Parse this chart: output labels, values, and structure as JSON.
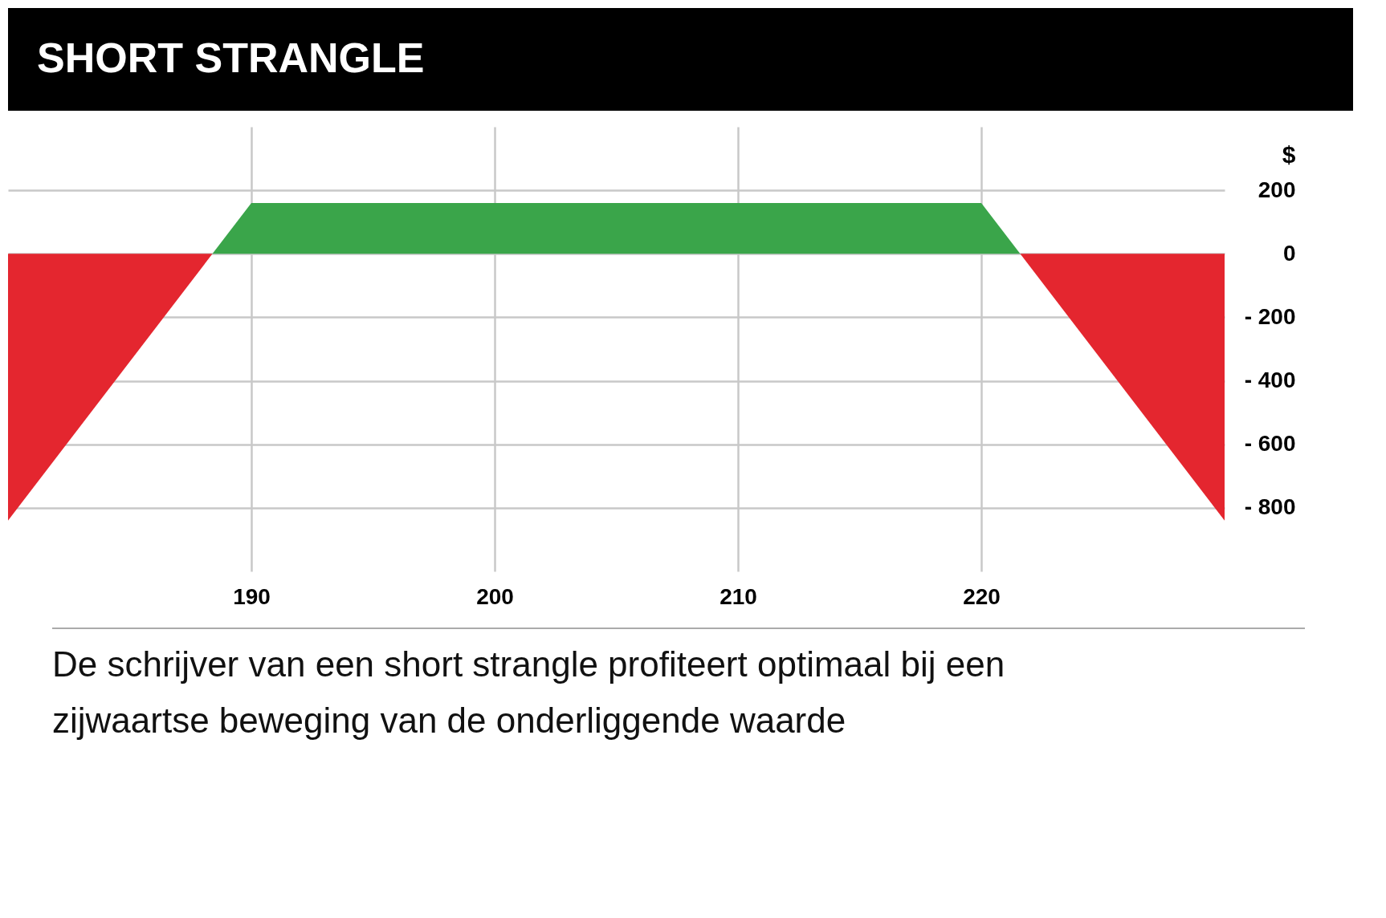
{
  "chart_data": {
    "type": "area",
    "title": "SHORT STRANGLE",
    "ylabel": "$",
    "series": [
      {
        "color": "#e4262f",
        "x": [
          180,
          188.4
        ],
        "values": [
          -840,
          0
        ]
      },
      {
        "color": "#3aa54a",
        "x": [
          188.4,
          190,
          220,
          221.6
        ],
        "values": [
          0,
          160,
          160,
          0
        ]
      },
      {
        "color": "#e4262f",
        "x": [
          221.6,
          230
        ],
        "values": [
          0,
          -840
        ]
      }
    ],
    "xlim": [
      180,
      230
    ],
    "xticks": [
      190,
      200,
      210,
      220
    ],
    "ylim": [
      -1000,
      400
    ],
    "yticks": [
      200,
      0,
      {
        "value": -200,
        "label": "- 200"
      },
      {
        "value": -400,
        "label": "- 400"
      },
      {
        "value": -600,
        "label": "- 600"
      },
      {
        "value": -800,
        "label": "- 800"
      }
    ],
    "grid": true,
    "annotations": [
      "De schrijver van een short strangle profiteert optimaal bij een zijwaartse beweging van de onderliggende waarde"
    ]
  }
}
